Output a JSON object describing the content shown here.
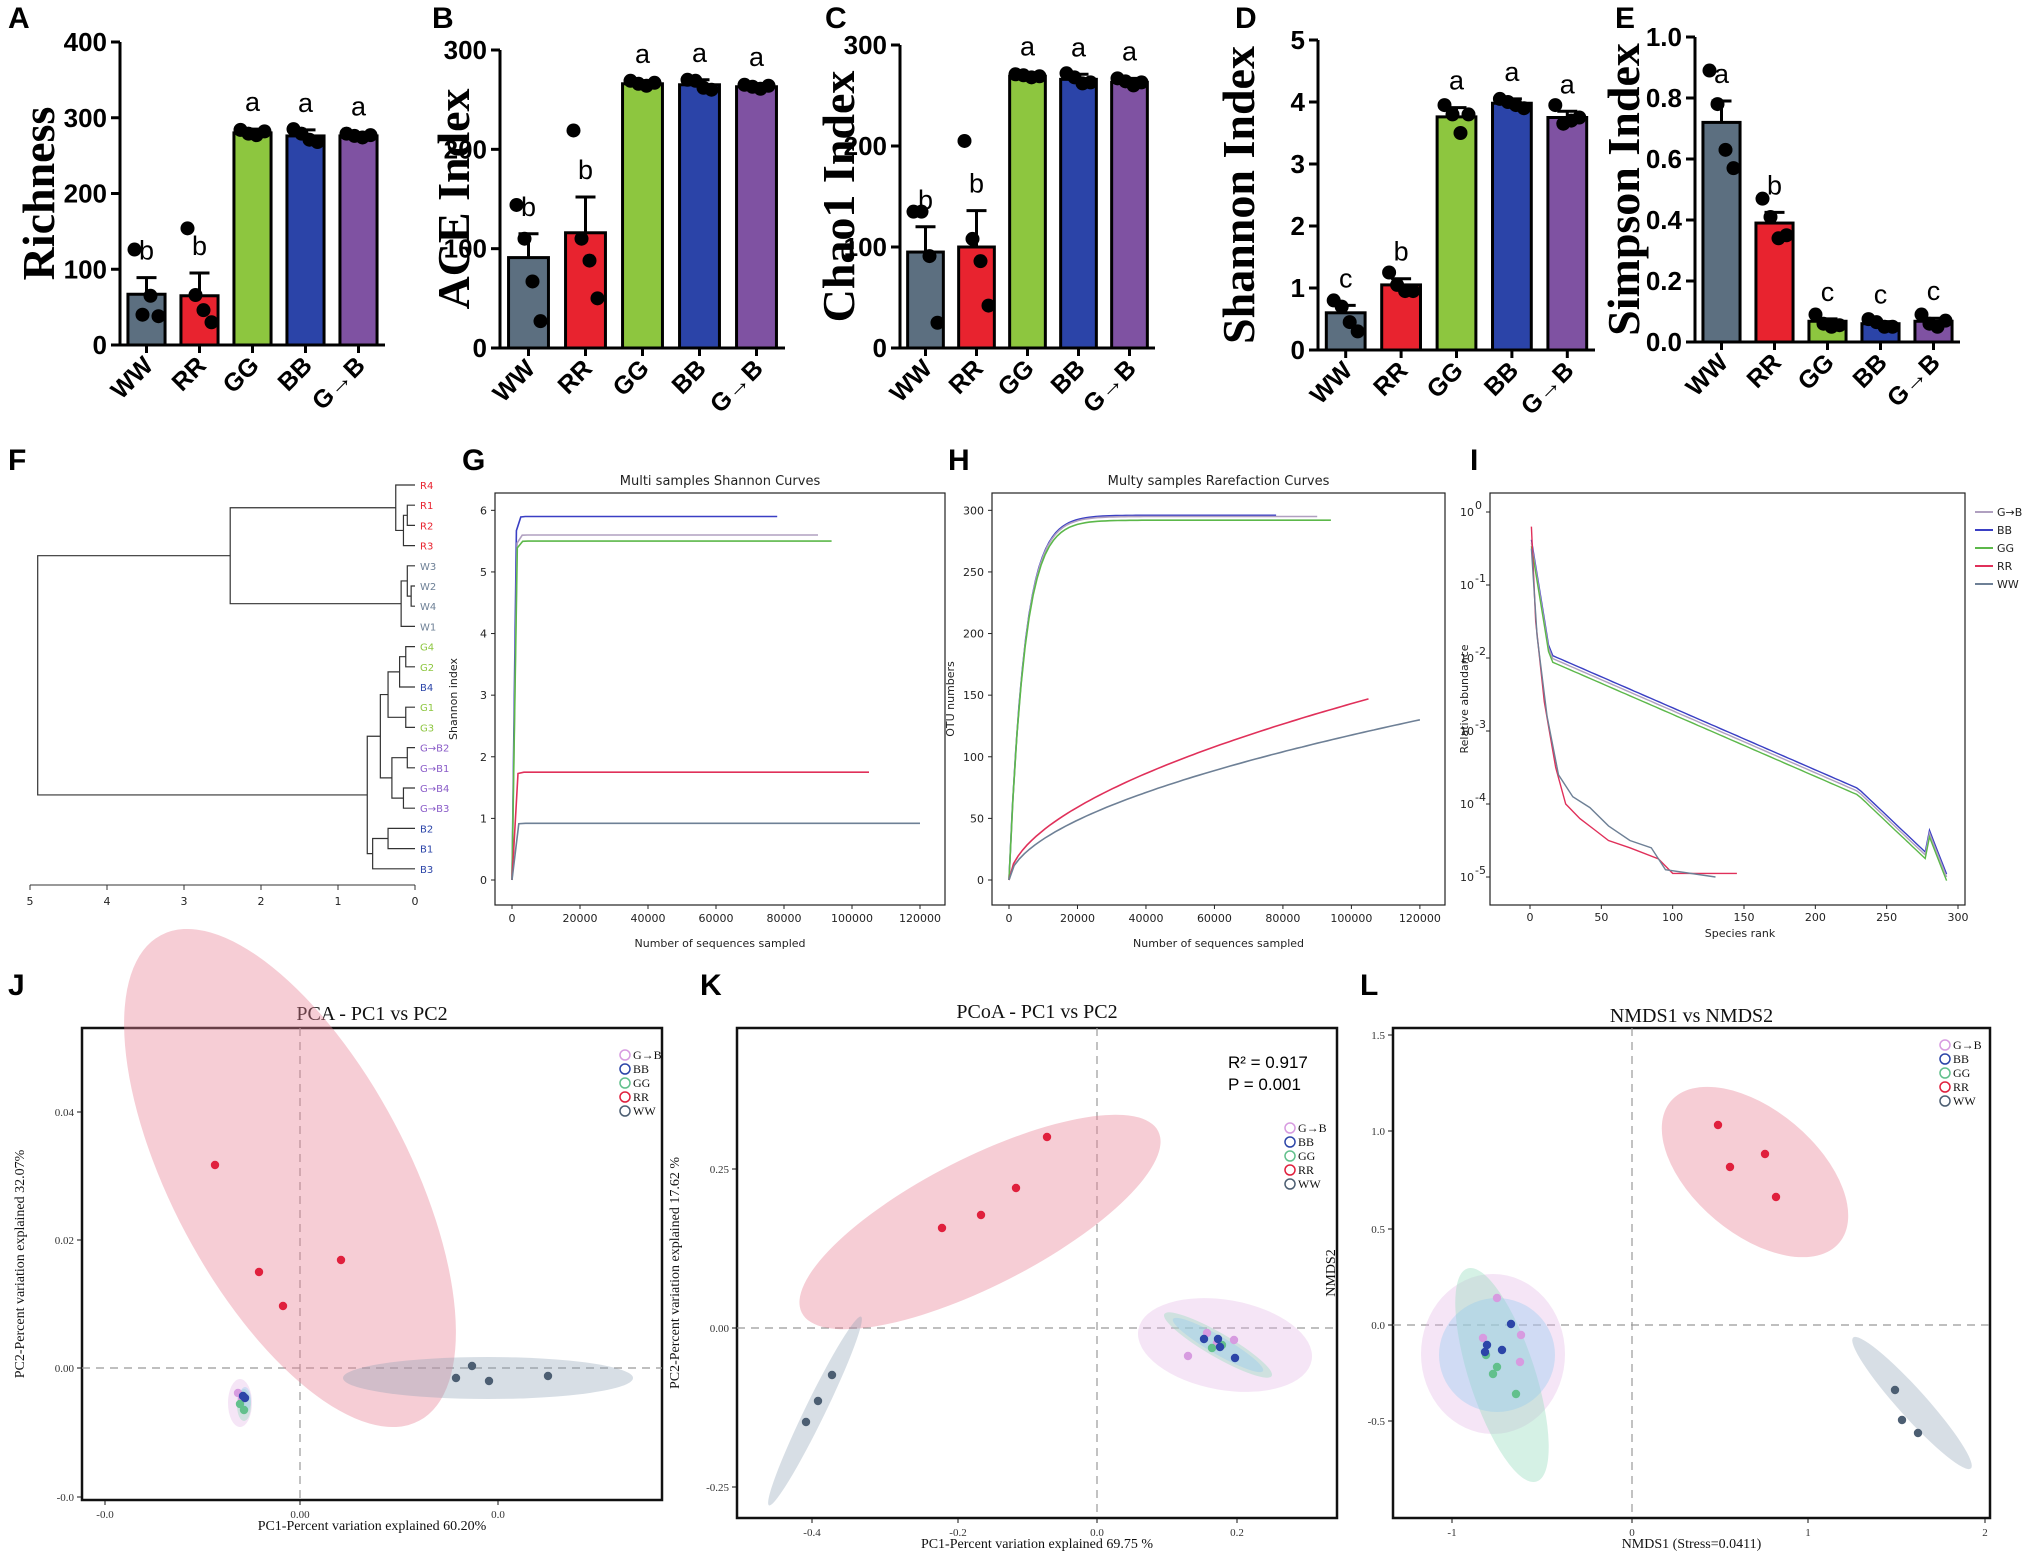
{
  "colors": {
    "WW": "#5c6f80",
    "RR": "#e8232f",
    "GG": "#8dc63f",
    "BB": "#2b44a8",
    "GB": "#7f52a2",
    "GB_line": "#b0a0c0",
    "BB_line": "#3a3fc4",
    "GG_line": "#5cb84a",
    "RR_line": "#e0305a",
    "WW_line": "#6e8096"
  },
  "bar_panels": [
    {
      "letter": "A",
      "ylabel": "Richness",
      "ymax": 400,
      "ticks": [
        0,
        100,
        200,
        300,
        400
      ],
      "categories": [
        "WW",
        "RR",
        "GG",
        "BB",
        "G→B"
      ],
      "values": [
        67,
        65,
        280,
        276,
        276
      ],
      "errors": [
        22,
        30,
        5,
        8,
        3
      ],
      "points": [
        [
          126,
          40,
          65,
          38
        ],
        [
          154,
          66,
          46,
          30
        ],
        [
          284,
          279,
          277,
          282
        ],
        [
          285,
          279,
          271,
          268
        ],
        [
          279,
          276,
          274,
          277
        ]
      ],
      "letters": [
        "b",
        "b",
        "a",
        "a",
        "a"
      ]
    },
    {
      "letter": "B",
      "ylabel": "ACE Index",
      "ymax": 300,
      "ticks": [
        0,
        100,
        200,
        300
      ],
      "categories": [
        "WW",
        "RR",
        "GG",
        "BB",
        "G→B"
      ],
      "values": [
        91,
        116,
        266,
        265,
        263
      ],
      "errors": [
        24,
        36,
        3,
        5,
        3
      ],
      "points": [
        [
          144,
          110,
          67,
          27
        ],
        [
          219,
          110,
          88,
          50
        ],
        [
          269,
          266,
          264,
          267
        ],
        [
          270,
          269,
          262,
          260
        ],
        [
          265,
          263,
          261,
          264
        ]
      ],
      "letters": [
        "b",
        "b",
        "a",
        "a",
        "a"
      ]
    },
    {
      "letter": "C",
      "ylabel": "Chao1 Index",
      "ymax": 300,
      "ticks": [
        0,
        100,
        200,
        300
      ],
      "categories": [
        "WW",
        "RR",
        "GG",
        "BB",
        "G→B"
      ],
      "values": [
        95,
        100,
        269,
        266,
        263
      ],
      "errors": [
        25,
        36,
        3,
        5,
        4
      ],
      "points": [
        [
          135,
          135,
          91,
          25
        ],
        [
          205,
          108,
          86,
          42
        ],
        [
          271,
          270,
          268,
          269
        ],
        [
          272,
          268,
          262,
          263
        ],
        [
          267,
          264,
          260,
          263
        ]
      ],
      "letters": [
        "b",
        "b",
        "a",
        "a",
        "a"
      ]
    },
    {
      "letter": "D",
      "ylabel": "Shannon Index",
      "ymax": 5,
      "ticks": [
        0,
        1,
        2,
        3,
        4,
        5
      ],
      "categories": [
        "WW",
        "RR",
        "GG",
        "BB",
        "G→B"
      ],
      "values": [
        0.6,
        1.05,
        3.76,
        3.98,
        3.75
      ],
      "errors": [
        0.12,
        0.1,
        0.15,
        0.07,
        0.1
      ],
      "points": [
        [
          0.8,
          0.7,
          0.45,
          0.3
        ],
        [
          1.25,
          1.05,
          0.95,
          0.95
        ],
        [
          3.95,
          3.8,
          3.5,
          3.8
        ],
        [
          4.05,
          4.0,
          3.95,
          3.9
        ],
        [
          3.95,
          3.65,
          3.7,
          3.75
        ]
      ],
      "letters": [
        "c",
        "b",
        "a",
        "a",
        "a"
      ]
    },
    {
      "letter": "E",
      "ylabel": "Simpson Index",
      "ymax": 1.0,
      "ticks": [
        "0.0",
        "0.2",
        "0.4",
        "0.6",
        "0.8",
        "1.0"
      ],
      "categories": [
        "WW",
        "RR",
        "GG",
        "BB",
        "G→B"
      ],
      "values": [
        0.72,
        0.39,
        0.068,
        0.06,
        0.068
      ],
      "errors": [
        0.07,
        0.035,
        0.008,
        0.007,
        0.01
      ],
      "points": [
        [
          0.89,
          0.78,
          0.63,
          0.57
        ],
        [
          0.47,
          0.41,
          0.34,
          0.35
        ],
        [
          0.09,
          0.06,
          0.05,
          0.055
        ],
        [
          0.075,
          0.065,
          0.05,
          0.05
        ],
        [
          0.09,
          0.06,
          0.05,
          0.07
        ]
      ],
      "letters": [
        "a",
        "b",
        "c",
        "c",
        "c"
      ]
    }
  ],
  "dendrogram": {
    "letter": "F",
    "leaves": [
      "R4",
      "R1",
      "R2",
      "R3",
      "W3",
      "W2",
      "W4",
      "W1",
      "G4",
      "G2",
      "B4",
      "G1",
      "G3",
      "G→B2",
      "G→B1",
      "G→B4",
      "G→B3",
      "B2",
      "B1",
      "B3"
    ],
    "axis_ticks": [
      "5",
      "4",
      "3",
      "2",
      "1",
      "0"
    ]
  },
  "shannon_curves": {
    "letter": "G",
    "title": "Multi samples Shannon Curves",
    "xlabel": "Number of sequences sampled",
    "ylabel": "Shannon index",
    "xticks": [
      "0",
      "20000",
      "40000",
      "60000",
      "80000",
      "100000",
      "120000"
    ],
    "yticks": [
      "0",
      "1",
      "2",
      "3",
      "4",
      "5",
      "6"
    ],
    "series": [
      {
        "name": "BB",
        "plateau": 5.9,
        "xmax": 78000
      },
      {
        "name": "G→B",
        "plateau": 5.6,
        "xmax": 90000
      },
      {
        "name": "GG",
        "plateau": 5.5,
        "xmax": 94000
      },
      {
        "name": "RR",
        "plateau": 1.75,
        "xmax": 105000
      },
      {
        "name": "WW",
        "plateau": 0.92,
        "xmax": 120000
      }
    ]
  },
  "rarefaction": {
    "letter": "H",
    "title": "Multy samples Rarefaction Curves",
    "xlabel": "Number of sequences sampled",
    "ylabel": "OTU numbers",
    "xticks": [
      "0",
      "20000",
      "40000",
      "60000",
      "80000",
      "100000",
      "120000"
    ],
    "yticks": [
      "0",
      "50",
      "100",
      "150",
      "200",
      "250",
      "300"
    ],
    "series": [
      {
        "name": "BB",
        "plateau": 296,
        "xmax": 78000
      },
      {
        "name": "G→B",
        "plateau": 295,
        "xmax": 90000
      },
      {
        "name": "GG",
        "plateau": 292,
        "xmax": 94000
      },
      {
        "name": "RR",
        "end": 147,
        "xmax": 105000
      },
      {
        "name": "WW",
        "end": 130,
        "xmax": 120000
      }
    ]
  },
  "rank_abundance": {
    "letter": "I",
    "xlabel": "Species rank",
    "ylabel": "Relative abundance",
    "xticks": [
      "0",
      "50",
      "100",
      "150",
      "200",
      "250",
      "300"
    ],
    "ytick_exponents": [
      "0",
      "-1",
      "-2",
      "-3",
      "-4",
      "-5"
    ],
    "legend": [
      "G→B",
      "BB",
      "GG",
      "RR",
      "WW"
    ]
  },
  "ordinations": [
    {
      "letter": "J",
      "title": "PCA - PC1 vs PC2",
      "xlabel": "PC1-Percent variation explained 60.20%",
      "ylabel": "PC2-Percent variation explained 32.07%",
      "xticks": [
        "-0.0",
        "0.00",
        "0.0"
      ],
      "yticks": [
        "0.04",
        "0.02",
        "0.00",
        "-0.0"
      ],
      "legend": [
        "G→B",
        "BB",
        "GG",
        "RR",
        "WW"
      ]
    },
    {
      "letter": "K",
      "title": "PCoA - PC1 vs PC2",
      "xlabel": "PC1-Percent variation explained 69.75 %",
      "ylabel": "PC2-Percent variation explained 17.62 %",
      "xticks": [
        "-0.4",
        "-0.2",
        "0.0",
        "0.2"
      ],
      "yticks": [
        "0.25",
        "0.00",
        "-0.25"
      ],
      "legend": [
        "G→B",
        "BB",
        "GG",
        "RR",
        "WW"
      ],
      "stat_r2": "R² = 0.917",
      "stat_p": "P = 0.001"
    },
    {
      "letter": "L",
      "title": "NMDS1 vs NMDS2",
      "xlabel": "NMDS1 (Stress=0.0411)",
      "ylabel": "NMDS2",
      "xticks": [
        "-1",
        "0",
        "1",
        "2"
      ],
      "yticks": [
        "1.5",
        "1.0",
        "0.5",
        "0.0",
        "-0.5"
      ],
      "legend": [
        "G→B",
        "BB",
        "GG",
        "RR",
        "WW"
      ]
    }
  ]
}
